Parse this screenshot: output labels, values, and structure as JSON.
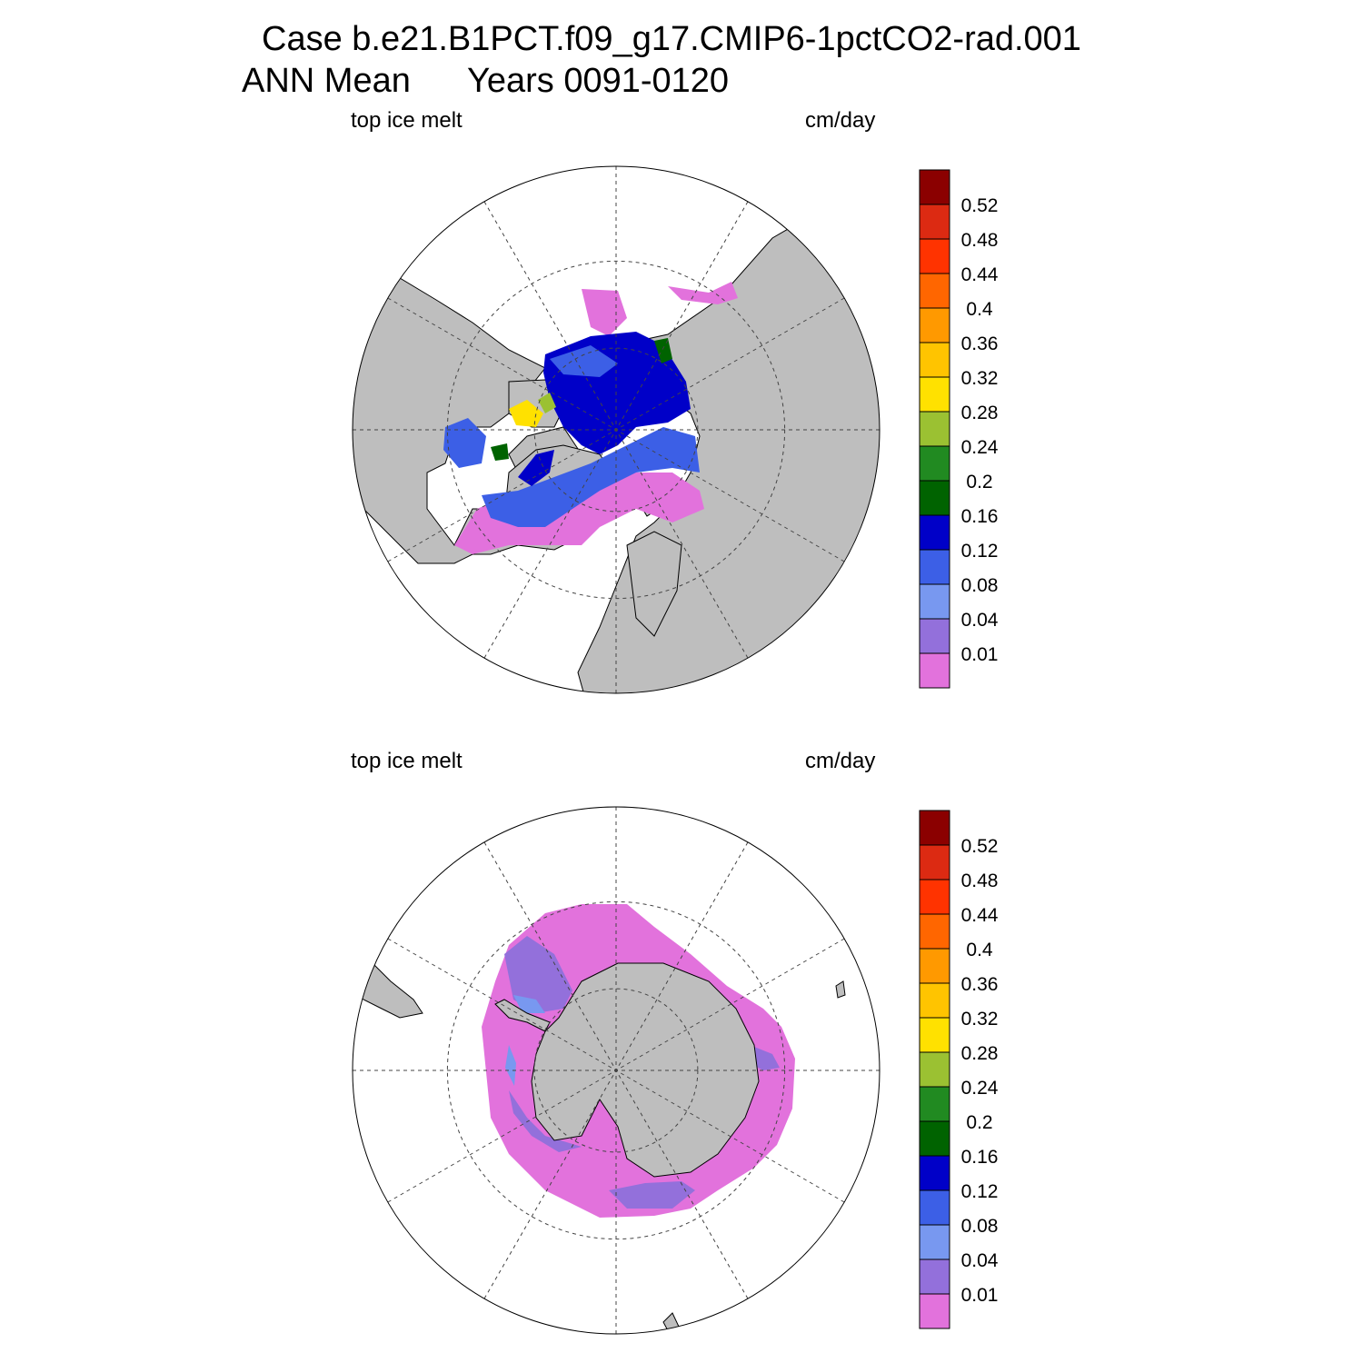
{
  "header": {
    "line1": "Case b.e21.B1PCT.f09_g17.CMIP6-1pctCO2-rad.001",
    "season": "ANN Mean",
    "years": "Years 0091-0120"
  },
  "panels": [
    {
      "hemisphere": "north",
      "left_label": "top ice melt",
      "right_label": "cm/day"
    },
    {
      "hemisphere": "south",
      "left_label": "top ice melt",
      "right_label": "cm/day"
    }
  ],
  "colorbar": {
    "levels": [
      "0.52",
      "0.48",
      "0.44",
      "0.4",
      "0.36",
      "0.32",
      "0.28",
      "0.24",
      "0.2",
      "0.16",
      "0.12",
      "0.08",
      "0.04",
      "0.01"
    ],
    "colors": [
      "#8b0000",
      "#dc2a12",
      "#ff3300",
      "#ff6600",
      "#ff9900",
      "#ffc400",
      "#ffe100",
      "#9bc132",
      "#218a21",
      "#006300",
      "#0000c8",
      "#3c5fe6",
      "#7898f0",
      "#9370db",
      "#e272dc"
    ]
  },
  "map_colors": {
    "land": "#bebebe",
    "open_water": "#ffffff"
  }
}
